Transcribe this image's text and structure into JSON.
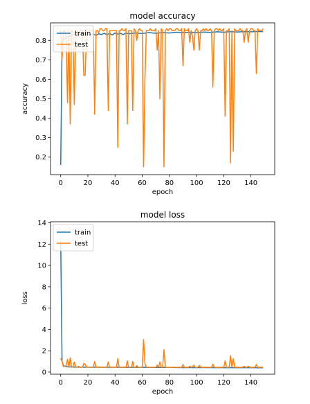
{
  "chart_data": [
    {
      "type": "line",
      "title": "model accuracy",
      "xlabel": "epoch",
      "ylabel": "accuracy",
      "xlim": [
        -7.5,
        157.5
      ],
      "ylim": [
        0.11,
        0.89
      ],
      "xticks": [
        0,
        20,
        40,
        60,
        80,
        100,
        120,
        140
      ],
      "yticks": [
        0.2,
        0.3,
        0.4,
        0.5,
        0.6,
        0.7,
        0.8
      ],
      "ytick_labels": [
        "0.2",
        "0.3",
        "0.4",
        "0.5",
        "0.6",
        "0.7",
        "0.8"
      ],
      "legend_position": "upper-left",
      "series": [
        {
          "name": "train",
          "color": "#1f77b4",
          "x": [
            0,
            1,
            2,
            3,
            4,
            5,
            6,
            7,
            8,
            9,
            10,
            12,
            14,
            16,
            18,
            20,
            22,
            24,
            26,
            28,
            30,
            32,
            34,
            36,
            38,
            40,
            42,
            44,
            46,
            48,
            50,
            55,
            60,
            65,
            70,
            75,
            80,
            85,
            90,
            95,
            100,
            105,
            110,
            115,
            120,
            125,
            130,
            135,
            140,
            145,
            149
          ],
          "y": [
            0.16,
            0.78,
            0.8,
            0.81,
            0.815,
            0.82,
            0.82,
            0.825,
            0.825,
            0.828,
            0.83,
            0.828,
            0.83,
            0.832,
            0.83,
            0.833,
            0.828,
            0.832,
            0.826,
            0.834,
            0.83,
            0.836,
            0.83,
            0.835,
            0.828,
            0.838,
            0.832,
            0.836,
            0.83,
            0.838,
            0.834,
            0.838,
            0.835,
            0.84,
            0.836,
            0.84,
            0.838,
            0.842,
            0.84,
            0.842,
            0.84,
            0.843,
            0.841,
            0.844,
            0.842,
            0.845,
            0.843,
            0.845,
            0.844,
            0.846,
            0.845
          ]
        },
        {
          "name": "test",
          "color": "#ff7f0e",
          "x": [
            0,
            1,
            2,
            3,
            4,
            5,
            6,
            7,
            8,
            9,
            10,
            11,
            12,
            13,
            14,
            15,
            16,
            17,
            18,
            19,
            20,
            21,
            22,
            23,
            24,
            25,
            26,
            27,
            28,
            29,
            30,
            31,
            32,
            33,
            34,
            35,
            36,
            37,
            38,
            39,
            40,
            41,
            42,
            43,
            44,
            45,
            46,
            47,
            48,
            49,
            50,
            51,
            52,
            53,
            54,
            55,
            56,
            57,
            58,
            59,
            60,
            61,
            62,
            63,
            64,
            65,
            66,
            67,
            68,
            69,
            70,
            71,
            72,
            73,
            74,
            75,
            76,
            77,
            78,
            79,
            80,
            81,
            82,
            83,
            84,
            85,
            86,
            87,
            88,
            89,
            90,
            91,
            92,
            93,
            94,
            95,
            96,
            97,
            98,
            99,
            100,
            101,
            102,
            103,
            104,
            105,
            106,
            107,
            108,
            109,
            110,
            111,
            112,
            113,
            114,
            115,
            116,
            117,
            118,
            119,
            120,
            121,
            122,
            123,
            124,
            125,
            126,
            127,
            128,
            129,
            130,
            131,
            132,
            133,
            134,
            135,
            136,
            137,
            138,
            139,
            140,
            141,
            142,
            143,
            144,
            145,
            146,
            147,
            148,
            149
          ],
          "y": [
            0.85,
            0.7,
            0.85,
            0.85,
            0.82,
            0.48,
            0.85,
            0.37,
            0.85,
            0.85,
            0.47,
            0.85,
            0.85,
            0.82,
            0.85,
            0.85,
            0.85,
            0.62,
            0.62,
            0.85,
            0.85,
            0.85,
            0.85,
            0.85,
            0.85,
            0.42,
            0.85,
            0.85,
            0.84,
            0.86,
            0.86,
            0.85,
            0.85,
            0.86,
            0.86,
            0.44,
            0.85,
            0.85,
            0.85,
            0.85,
            0.85,
            0.85,
            0.25,
            0.85,
            0.85,
            0.86,
            0.85,
            0.85,
            0.86,
            0.37,
            0.85,
            0.85,
            0.85,
            0.44,
            0.86,
            0.85,
            0.8,
            0.85,
            0.86,
            0.85,
            0.85,
            0.15,
            0.6,
            0.85,
            0.85,
            0.85,
            0.86,
            0.85,
            0.85,
            0.85,
            0.86,
            0.75,
            0.85,
            0.5,
            0.86,
            0.85,
            0.15,
            0.85,
            0.86,
            0.85,
            0.86,
            0.86,
            0.85,
            0.85,
            0.85,
            0.86,
            0.86,
            0.85,
            0.85,
            0.86,
            0.67,
            0.86,
            0.85,
            0.85,
            0.86,
            0.79,
            0.85,
            0.82,
            0.75,
            0.85,
            0.86,
            0.85,
            0.75,
            0.85,
            0.85,
            0.86,
            0.85,
            0.86,
            0.85,
            0.85,
            0.86,
            0.85,
            0.56,
            0.85,
            0.86,
            0.86,
            0.85,
            0.86,
            0.85,
            0.85,
            0.86,
            0.41,
            0.85,
            0.85,
            0.86,
            0.17,
            0.85,
            0.23,
            0.86,
            0.85,
            0.85,
            0.85,
            0.86,
            0.85,
            0.85,
            0.79,
            0.85,
            0.86,
            0.79,
            0.85,
            0.86,
            0.86,
            0.85,
            0.85,
            0.63,
            0.86,
            0.85,
            0.85,
            0.85,
            0.86
          ]
        }
      ]
    },
    {
      "type": "line",
      "title": "model loss",
      "xlabel": "epoch",
      "ylabel": "loss",
      "xlim": [
        -7.5,
        157.5
      ],
      "ylim": [
        -0.2,
        14.1
      ],
      "xticks": [
        0,
        20,
        40,
        60,
        80,
        100,
        120,
        140
      ],
      "yticks": [
        0,
        2,
        4,
        6,
        8,
        10,
        12,
        14
      ],
      "ytick_labels": [
        "0",
        "2",
        "4",
        "6",
        "8",
        "10",
        "12",
        "14"
      ],
      "legend_position": "upper-left",
      "series": [
        {
          "name": "train",
          "color": "#1f77b4",
          "x": [
            0,
            1,
            2,
            3,
            4,
            5,
            6,
            8,
            10,
            12,
            15,
            20,
            30,
            40,
            50,
            60,
            70,
            80,
            90,
            100,
            110,
            120,
            130,
            140,
            149
          ],
          "y": [
            12.2,
            1.0,
            0.6,
            0.55,
            0.52,
            0.5,
            0.49,
            0.48,
            0.47,
            0.47,
            0.46,
            0.46,
            0.45,
            0.45,
            0.44,
            0.44,
            0.43,
            0.43,
            0.42,
            0.42,
            0.42,
            0.41,
            0.41,
            0.41,
            0.4
          ]
        },
        {
          "name": "test",
          "color": "#ff7f0e",
          "x": [
            0,
            1,
            2,
            3,
            4,
            5,
            6,
            7,
            8,
            9,
            10,
            11,
            12,
            13,
            14,
            15,
            16,
            17,
            18,
            19,
            20,
            21,
            22,
            23,
            24,
            25,
            26,
            27,
            28,
            29,
            30,
            31,
            32,
            33,
            34,
            35,
            36,
            37,
            38,
            39,
            40,
            41,
            42,
            43,
            44,
            45,
            46,
            47,
            48,
            49,
            50,
            51,
            52,
            53,
            54,
            55,
            56,
            57,
            58,
            59,
            60,
            61,
            62,
            63,
            64,
            65,
            66,
            67,
            68,
            69,
            70,
            71,
            72,
            73,
            74,
            75,
            76,
            77,
            78,
            79,
            80,
            81,
            82,
            83,
            84,
            85,
            86,
            87,
            88,
            89,
            90,
            91,
            92,
            93,
            94,
            95,
            96,
            97,
            98,
            99,
            100,
            101,
            102,
            103,
            104,
            105,
            106,
            107,
            108,
            109,
            110,
            111,
            112,
            113,
            114,
            115,
            116,
            117,
            118,
            119,
            120,
            121,
            122,
            123,
            124,
            125,
            126,
            127,
            128,
            129,
            130,
            131,
            132,
            133,
            134,
            135,
            136,
            137,
            138,
            139,
            140,
            141,
            142,
            143,
            144,
            145,
            146,
            147,
            148,
            149
          ],
          "y": [
            1.3,
            1.0,
            0.5,
            0.55,
            0.6,
            1.2,
            0.45,
            1.35,
            0.45,
            0.5,
            0.95,
            0.45,
            0.45,
            0.55,
            0.45,
            0.45,
            0.45,
            0.8,
            0.75,
            0.45,
            0.45,
            0.45,
            0.45,
            0.45,
            0.45,
            1.0,
            0.45,
            0.45,
            0.5,
            0.44,
            0.44,
            0.45,
            0.45,
            0.44,
            0.44,
            0.95,
            0.45,
            0.45,
            0.45,
            0.45,
            0.45,
            0.45,
            1.25,
            0.45,
            0.45,
            0.44,
            0.45,
            0.45,
            0.44,
            1.05,
            0.45,
            0.45,
            0.45,
            1.0,
            0.44,
            0.45,
            0.6,
            0.45,
            0.44,
            0.45,
            0.45,
            3.05,
            0.8,
            0.45,
            0.45,
            0.45,
            0.44,
            0.45,
            0.45,
            0.45,
            0.44,
            0.65,
            0.45,
            0.95,
            0.44,
            0.45,
            2.1,
            0.45,
            0.44,
            0.45,
            0.44,
            0.44,
            0.45,
            0.45,
            0.45,
            0.44,
            0.44,
            0.45,
            0.45,
            0.44,
            0.7,
            0.44,
            0.45,
            0.45,
            0.44,
            0.55,
            0.45,
            0.5,
            0.65,
            0.45,
            0.44,
            0.45,
            0.62,
            0.45,
            0.45,
            0.44,
            0.45,
            0.44,
            0.45,
            0.45,
            0.44,
            0.45,
            0.75,
            0.45,
            0.44,
            0.44,
            0.45,
            0.44,
            0.45,
            0.45,
            0.44,
            1.05,
            0.45,
            0.45,
            0.44,
            1.55,
            0.45,
            1.25,
            0.44,
            0.45,
            0.45,
            0.45,
            0.44,
            0.45,
            0.45,
            0.55,
            0.45,
            0.44,
            0.55,
            0.45,
            0.44,
            0.44,
            0.45,
            0.45,
            0.7,
            0.44,
            0.45,
            0.45,
            0.45,
            0.44
          ]
        }
      ]
    }
  ]
}
